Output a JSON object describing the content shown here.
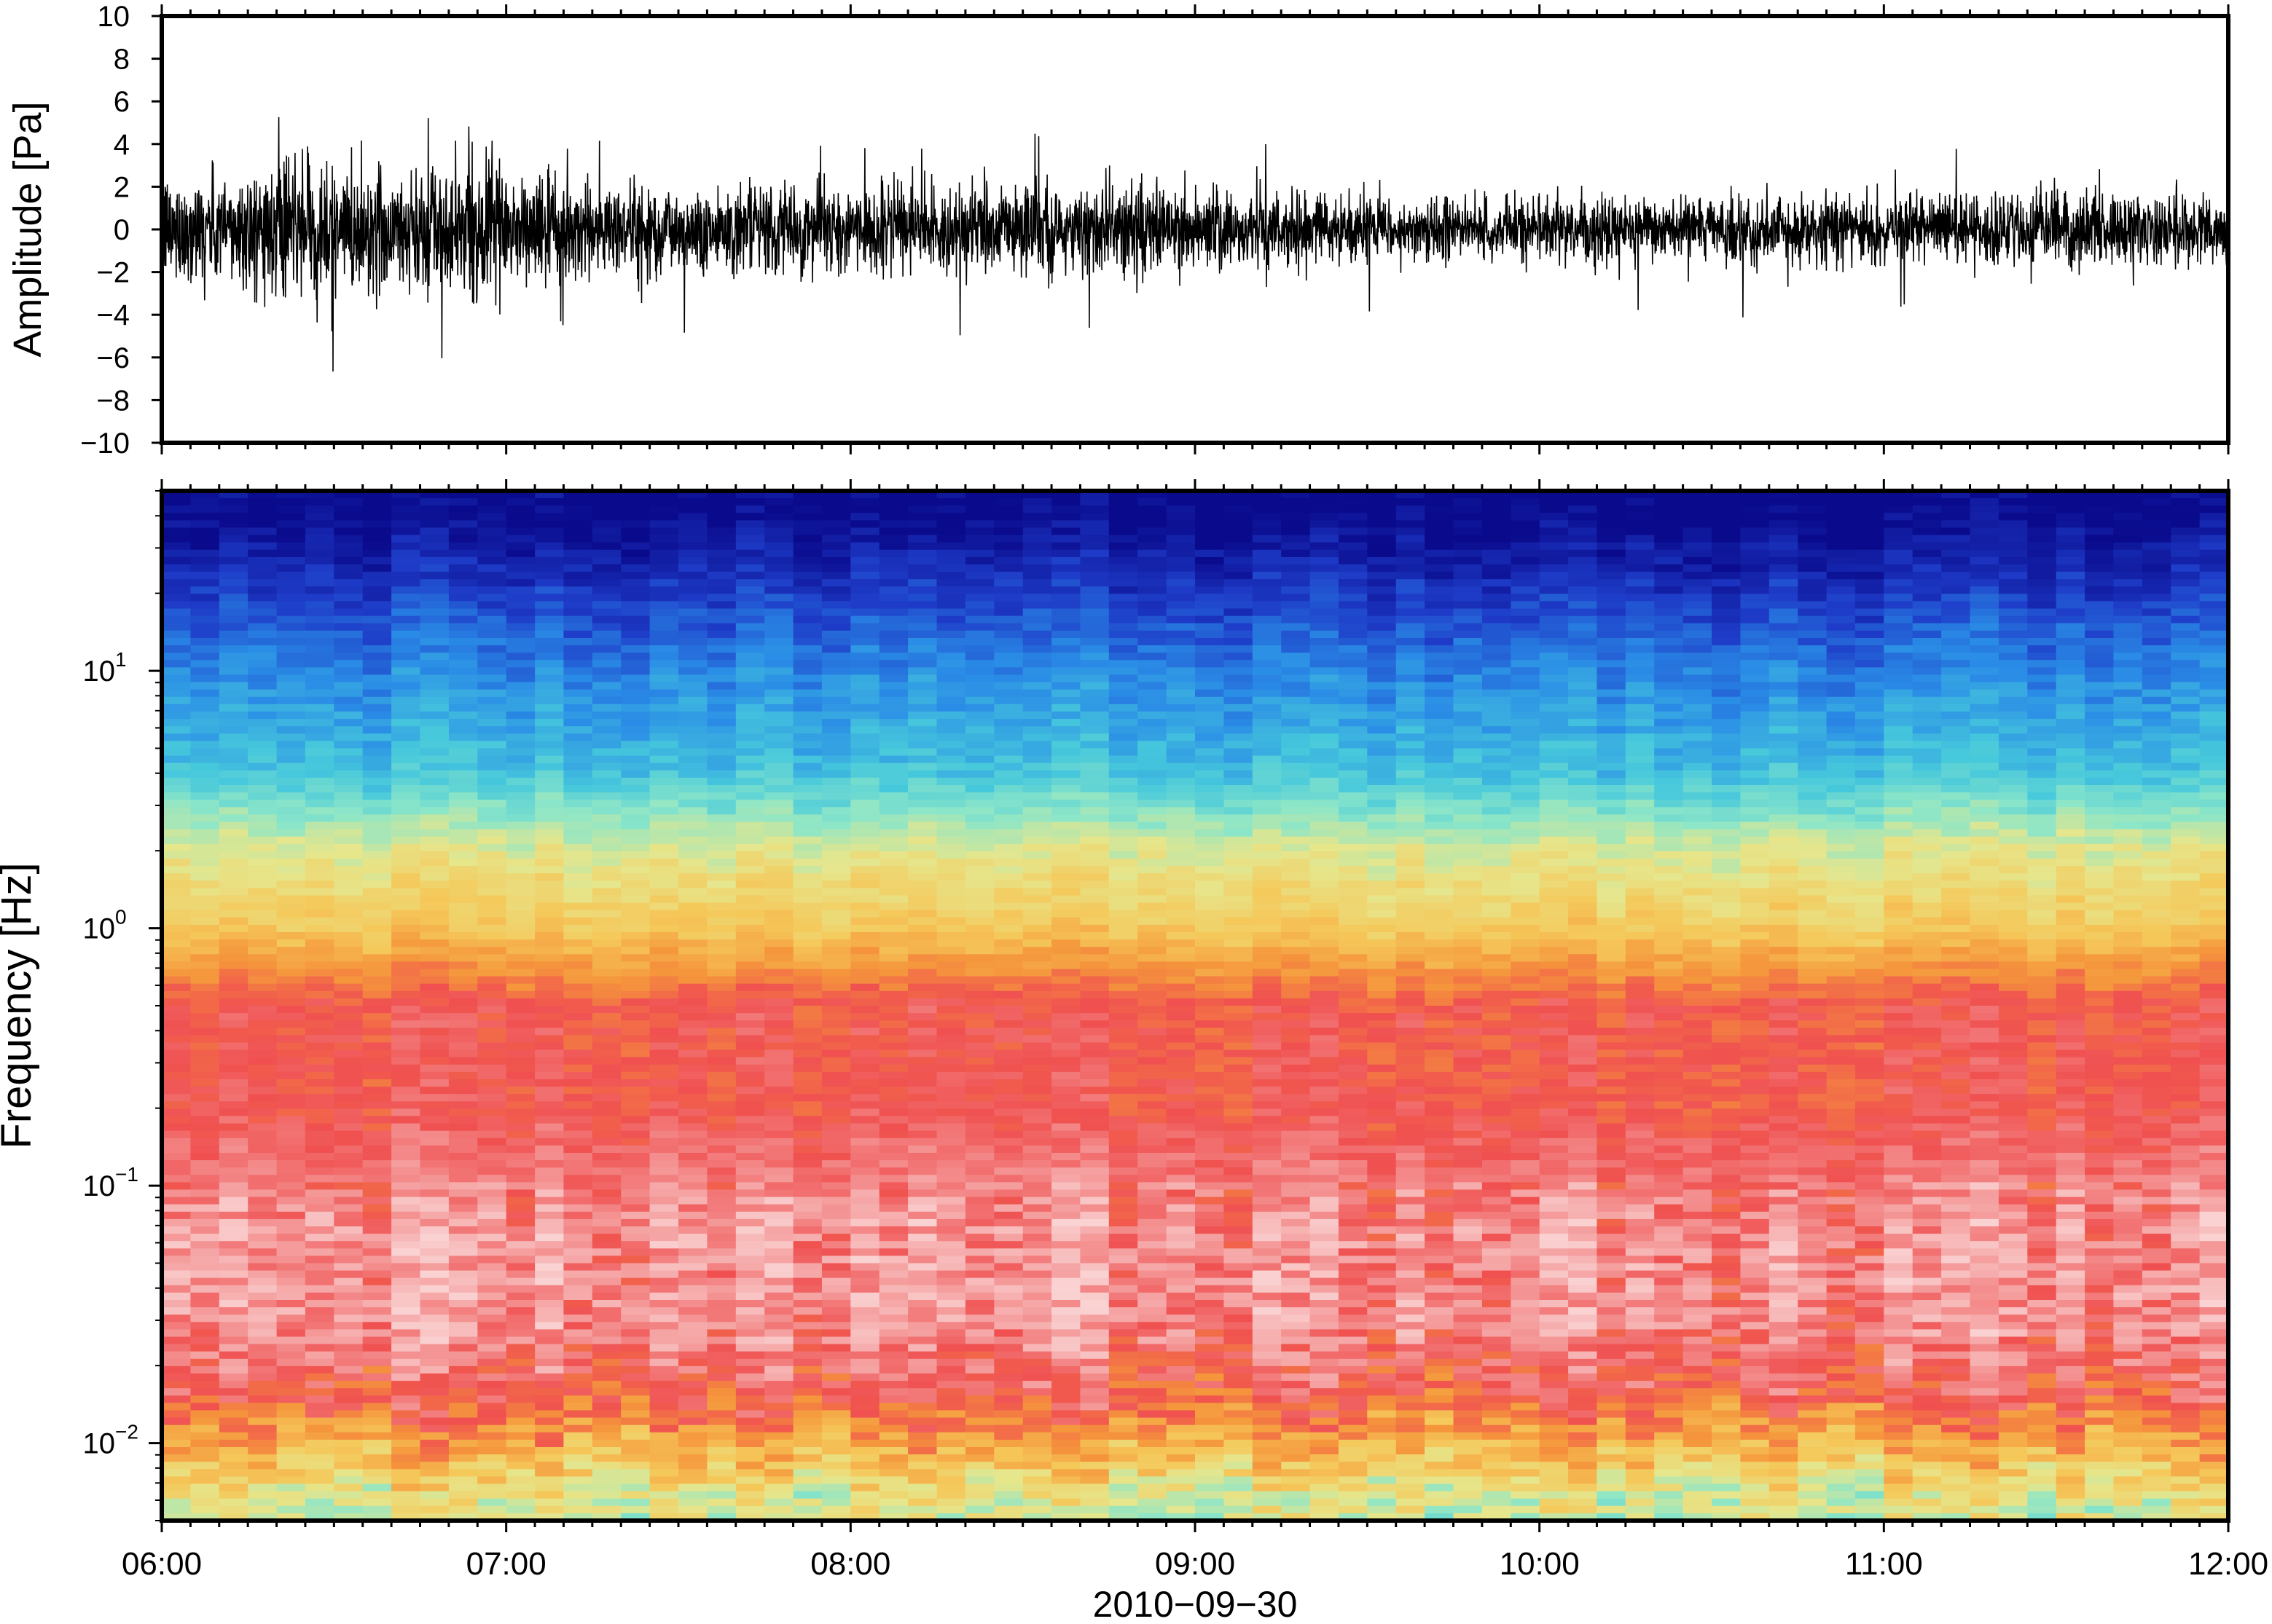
{
  "chart_data": [
    {
      "type": "line",
      "panel": "waveform",
      "ylabel": "Amplitude [Pa]",
      "ylim": [
        -10,
        10
      ],
      "y_ticks": [
        -10,
        -8,
        -6,
        -4,
        -2,
        0,
        2,
        4,
        6,
        8,
        10
      ],
      "y_tick_labels": [
        "−10",
        "−8",
        "−6",
        "−4",
        "−2",
        "0",
        "2",
        "4",
        "6",
        "8",
        "10"
      ],
      "x_range": [
        "06:00",
        "12:00"
      ],
      "line_color": "#000000",
      "noise_envelope": {
        "x": [
          "06:00",
          "06:30",
          "07:00",
          "07:30",
          "08:00",
          "08:30",
          "09:00",
          "09:30",
          "10:00",
          "10:30",
          "11:00",
          "11:30",
          "12:00"
        ],
        "typical_abs_amplitude": [
          2.2,
          2.8,
          2.4,
          1.9,
          1.8,
          2.0,
          1.8,
          1.4,
          1.3,
          1.3,
          1.5,
          1.6,
          1.5
        ],
        "peak_abs_amplitude": [
          4.5,
          7.2,
          6.0,
          5.0,
          4.5,
          5.6,
          4.2,
          4.0,
          3.5,
          4.6,
          4.2,
          5.0,
          3.8
        ]
      }
    },
    {
      "type": "heatmap",
      "panel": "spectrogram",
      "xlabel": "2010−09−30",
      "ylabel": "Frequency [Hz]",
      "y_scale": "log",
      "ylim": [
        0.005,
        50
      ],
      "y_ticks": [
        0.01,
        0.1,
        1,
        10
      ],
      "y_tick_labels": [
        {
          "base": "10",
          "exp": "−2"
        },
        {
          "base": "10",
          "exp": "−1"
        },
        {
          "base": "10",
          "exp": "0"
        },
        {
          "base": "10",
          "exp": "1"
        }
      ],
      "x_tick_labels": [
        "06:00",
        "07:00",
        "08:00",
        "09:00",
        "10:00",
        "11:00",
        "12:00"
      ],
      "colormap": [
        "#0a0a8c",
        "#1e3cc8",
        "#2a8ce6",
        "#46c8dc",
        "#8ce6c8",
        "#e6e68c",
        "#f5c85a",
        "#f5963c",
        "#f05050",
        "#f5a0a0",
        "#fad2d2"
      ],
      "dominant_color_by_frequency": [
        {
          "freq_hz": 40,
          "color": "#0a0a8c"
        },
        {
          "freq_hz": 20,
          "color": "#1e3cc8"
        },
        {
          "freq_hz": 10,
          "color": "#2a8ce6"
        },
        {
          "freq_hz": 4,
          "color": "#46c8dc"
        },
        {
          "freq_hz": 2,
          "color": "#e6e68c"
        },
        {
          "freq_hz": 1,
          "color": "#f5c85a"
        },
        {
          "freq_hz": 0.5,
          "color": "#f05050"
        },
        {
          "freq_hz": 0.2,
          "color": "#f05050"
        },
        {
          "freq_hz": 0.07,
          "color": "#f5a0a0"
        },
        {
          "freq_hz": 0.03,
          "color": "#f5a0a0"
        },
        {
          "freq_hz": 0.015,
          "color": "#f05050"
        },
        {
          "freq_hz": 0.008,
          "color": "#f5c85a"
        },
        {
          "freq_hz": 0.006,
          "color": "#e6e68c"
        }
      ]
    }
  ]
}
